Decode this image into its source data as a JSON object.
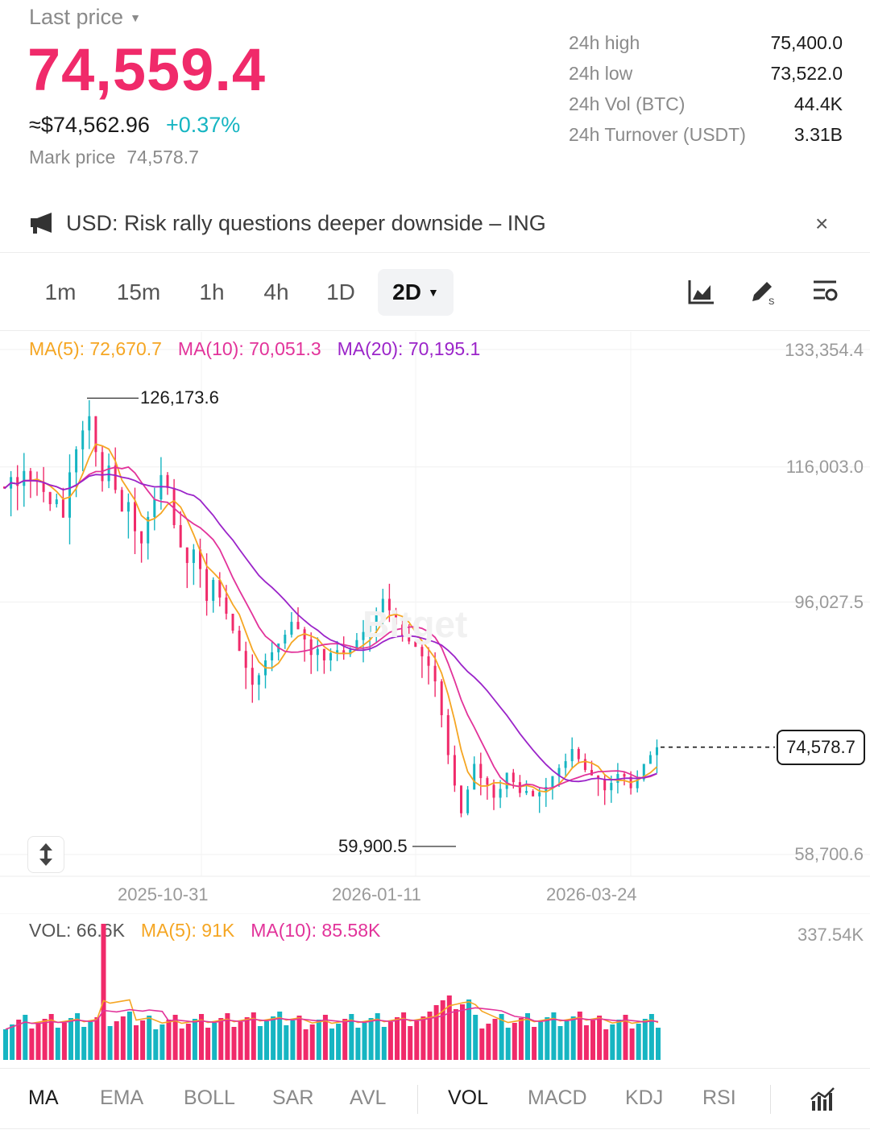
{
  "header": {
    "last_price_label": "Last price",
    "last_price": "74,559.4",
    "usd_price": "≈$74,562.96",
    "change_pct": "+0.37%",
    "mark_price_label": "Mark price",
    "mark_price": "74,578.7",
    "stats": [
      {
        "label": "24h high",
        "value": "75,400.0"
      },
      {
        "label": "24h low",
        "value": "73,522.0"
      },
      {
        "label": "24h Vol (BTC)",
        "value": "44.4K"
      },
      {
        "label": "24h Turnover (USDT)",
        "value": "3.31B"
      }
    ]
  },
  "news": {
    "text": "USD: Risk rally questions deeper downside – ING",
    "close_symbol": "×"
  },
  "timeframes": {
    "items": [
      "1m",
      "15m",
      "1h",
      "4h",
      "1D"
    ],
    "active": "2D"
  },
  "colors": {
    "up": "#16b5c2",
    "down": "#f02a6a",
    "ma5": "#f5a623",
    "ma10": "#e2339a",
    "ma20": "#9b24c9"
  },
  "legend": {
    "ma5": "MA(5): 72,670.7",
    "ma10": "MA(10): 70,051.3",
    "ma20": "MA(20): 70,195.1"
  },
  "price_axis": [
    "133,354.4",
    "116,003.0",
    "96,027.5",
    "58,700.6"
  ],
  "date_axis": [
    "2025-10-31",
    "2026-01-11",
    "2026-03-24"
  ],
  "annotations": {
    "high": "126,173.6",
    "low": "59,900.5",
    "current_tag": "74,578.7",
    "watermark": "Bitget"
  },
  "volume_legend": {
    "vol": "VOL: 66.6K",
    "ma5": "MA(5): 91K",
    "ma10": "MA(10): 85.58K",
    "axis_max": "337.54K"
  },
  "indicators": {
    "main": [
      "MA",
      "EMA",
      "BOLL",
      "SAR",
      "AVL"
    ],
    "sub": [
      "VOL",
      "MACD",
      "KDJ",
      "RSI"
    ],
    "active_main": "MA",
    "active_sub": "VOL"
  },
  "chart_data": {
    "type": "candlestick",
    "interval": "2D",
    "y_axis_ticks": [
      133354.4,
      116003.0,
      96027.5,
      58700.6
    ],
    "x_axis_ticks": [
      "2025-10-31",
      "2026-01-11",
      "2026-03-24"
    ],
    "high_marker": 126173.6,
    "low_marker": 59900.5,
    "last_value": 74578.7,
    "close": [
      112800,
      114500,
      113200,
      115400,
      114000,
      113800,
      112300,
      110500,
      111200,
      108500,
      115200,
      118600,
      121400,
      123500,
      118200,
      113900,
      116200,
      112600,
      109400,
      110800,
      106500,
      104700,
      108600,
      111200,
      114800,
      112900,
      107400,
      104100,
      101800,
      103800,
      100900,
      96200,
      99300,
      96700,
      94300,
      91800,
      88800,
      86300,
      83800,
      85200,
      87400,
      88600,
      89900,
      91200,
      93100,
      92000,
      90500,
      88200,
      89100,
      87400,
      88500,
      88900,
      88300,
      89000,
      90400,
      91600,
      92600,
      94500,
      96500,
      94800,
      92700,
      91000,
      90200,
      89400,
      88000,
      86600,
      84300,
      79300,
      73400,
      68900,
      64800,
      68300,
      72100,
      70000,
      69000,
      67100,
      68400,
      70800,
      69400,
      67800,
      68100,
      67300,
      67900,
      68700,
      70300,
      71500,
      72500,
      74300,
      72800,
      71200,
      70400,
      69900,
      68200,
      69300,
      70600,
      70200,
      68500,
      69800,
      72100,
      73400,
      74559
    ]
  }
}
